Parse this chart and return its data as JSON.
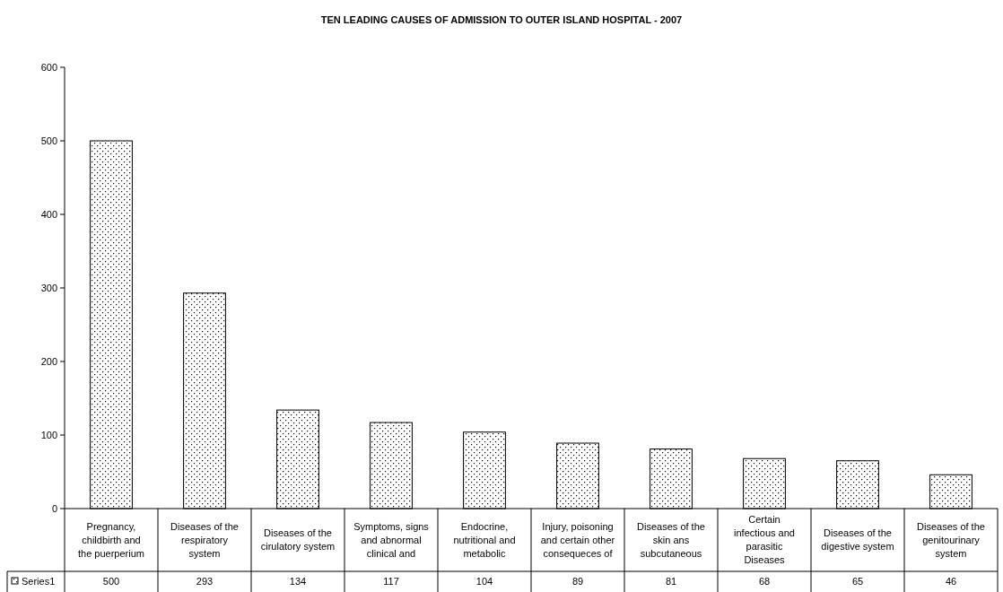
{
  "chart_data": {
    "type": "bar",
    "title": "TEN LEADING CAUSES OF ADMISSION TO OUTER ISLAND HOSPITAL - 2007",
    "categories": [
      "Pregnancy, childbirth and the puerperium",
      "Diseases of the respiratory system",
      "Diseases of the cirulatory system",
      "Symptoms, signs and abnormal clinical and",
      "Endocrine, nutritional and metabolic",
      "Injury, poisoning and certain other consequeces of",
      "Diseases of the skin ans subcutaneous",
      "Certain infectious and parasitic Diseases",
      "Diseases of the digestive system",
      "Diseases of the genitourinary system"
    ],
    "series": [
      {
        "name": "Series1",
        "color": "#000000",
        "values": [
          500,
          293,
          134,
          117,
          104,
          89,
          81,
          68,
          65,
          46
        ]
      }
    ],
    "ylim": [
      0,
      600
    ],
    "yticks": [
      0,
      100,
      200,
      300,
      400,
      500,
      600
    ],
    "grid": false,
    "data_labels": true,
    "legend": "bottom left"
  }
}
